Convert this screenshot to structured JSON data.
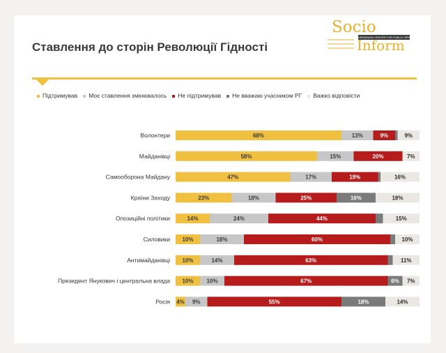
{
  "page": {
    "title": "Ставлення до сторін Революції Гідності"
  },
  "logo": {
    "line1": "Socio",
    "line2": "Inform",
    "tagline": "UKRAINIAN CENTER FOR PUBLIC OPINION RESEARCH"
  },
  "colors": {
    "Підтримував": "#f0c040",
    "Моє ставлення змінювалось": "#c7c7c7",
    "Не підтримував": "#b71c1c",
    "Не вважаю учасником РГ": "#7a7a7a",
    "Важко відповісти": "#ebe8e4"
  },
  "chart_data": {
    "type": "bar",
    "orientation": "horizontal",
    "stacked": true,
    "grid": false,
    "legend_position": "top",
    "categories": [
      "Волонтери",
      "Майданівці",
      "Самооборона Майдану",
      "Країни Заходу",
      "Опозиційні політики",
      "Силовики",
      "Антимайданівці",
      "Президент Янукович і центральна влада",
      "Росія"
    ],
    "series": [
      {
        "name": "Підтримував",
        "values": [
          68,
          58,
          47,
          23,
          14,
          10,
          10,
          10,
          4
        ]
      },
      {
        "name": "Моє ставлення змінювалось",
        "values": [
          13,
          15,
          17,
          18,
          24,
          18,
          14,
          10,
          9
        ]
      },
      {
        "name": "Не підтримував",
        "values": [
          9,
          20,
          19,
          25,
          44,
          60,
          63,
          67,
          55
        ]
      },
      {
        "name": "Не вважаю учасником РГ",
        "values": [
          1,
          0,
          1,
          16,
          3,
          2,
          2,
          6,
          18
        ]
      },
      {
        "name": "Важко відповісти",
        "values": [
          9,
          7,
          16,
          18,
          15,
          10,
          11,
          7,
          14
        ]
      }
    ]
  }
}
